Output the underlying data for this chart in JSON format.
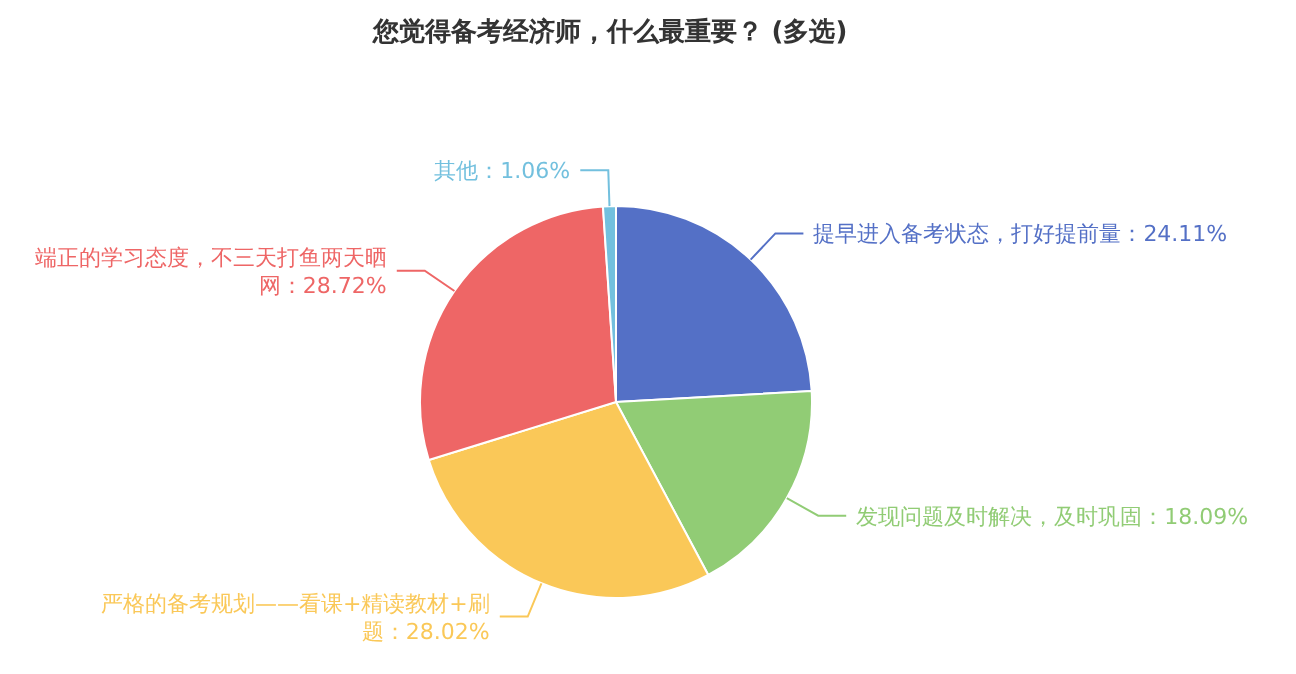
{
  "chart_data": {
    "type": "pie",
    "title": "您觉得备考经济师，什么最重要？  (多选)",
    "categories": [
      "提早进入备考状态，打好提前量",
      "发现问题及时解决，及时巩固",
      "严格的备考规划——看课+精读教材+刷题",
      "端正的学习态度，不三天打鱼两天晒网",
      "其他"
    ],
    "values": [
      24.11,
      18.09,
      28.02,
      28.72,
      1.06
    ],
    "value_labels": [
      "24.11%",
      "18.09%",
      "28.02%",
      "28.72%",
      "1.06%"
    ],
    "colors": [
      "#5470c6",
      "#91cc75",
      "#fac858",
      "#ee6666",
      "#73c0de"
    ]
  }
}
